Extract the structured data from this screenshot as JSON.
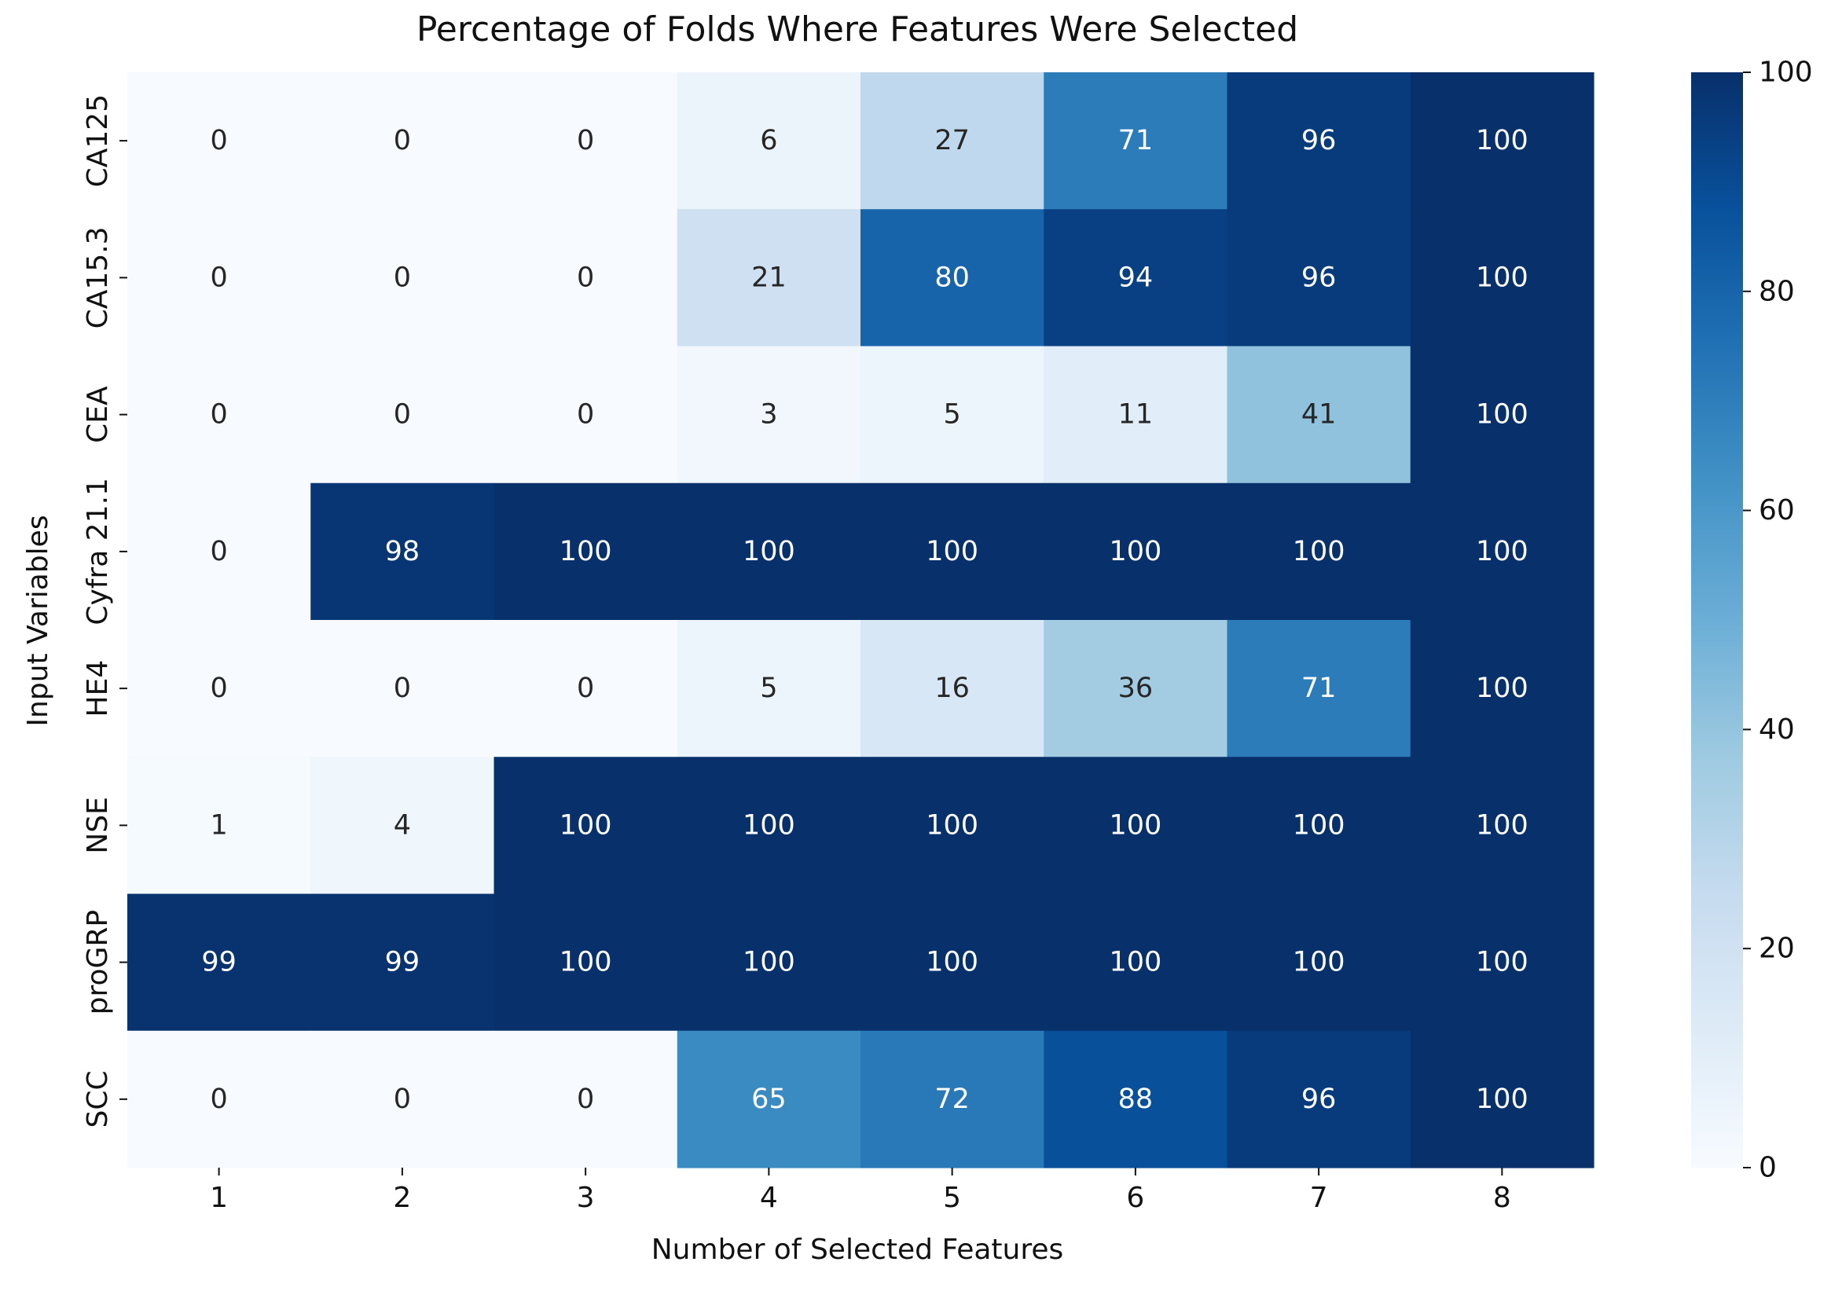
{
  "chart_data": {
    "type": "heatmap",
    "title": "Percentage of Folds Where Features Were Selected",
    "xlabel": "Number of Selected Features",
    "ylabel": "Input Variables",
    "x_categories": [
      "1",
      "2",
      "3",
      "4",
      "5",
      "6",
      "7",
      "8"
    ],
    "y_categories": [
      "CA125",
      "CA15.3",
      "CEA",
      "Cyfra 21.1",
      "HE4",
      "NSE",
      "proGRP",
      "SCC"
    ],
    "values": [
      [
        0,
        0,
        0,
        6,
        27,
        71,
        96,
        100
      ],
      [
        0,
        0,
        0,
        21,
        80,
        94,
        96,
        100
      ],
      [
        0,
        0,
        0,
        3,
        5,
        11,
        41,
        100
      ],
      [
        0,
        98,
        100,
        100,
        100,
        100,
        100,
        100
      ],
      [
        0,
        0,
        0,
        5,
        16,
        36,
        71,
        100
      ],
      [
        1,
        4,
        100,
        100,
        100,
        100,
        100,
        100
      ],
      [
        99,
        99,
        100,
        100,
        100,
        100,
        100,
        100
      ],
      [
        0,
        0,
        0,
        65,
        72,
        88,
        96,
        100
      ]
    ],
    "colormap": "Blues",
    "color_range": [
      0,
      100
    ],
    "colorbar_ticks": [
      "0",
      "20",
      "40",
      "60",
      "80",
      "100"
    ],
    "colorbar_placement": "right",
    "annotations": true
  }
}
